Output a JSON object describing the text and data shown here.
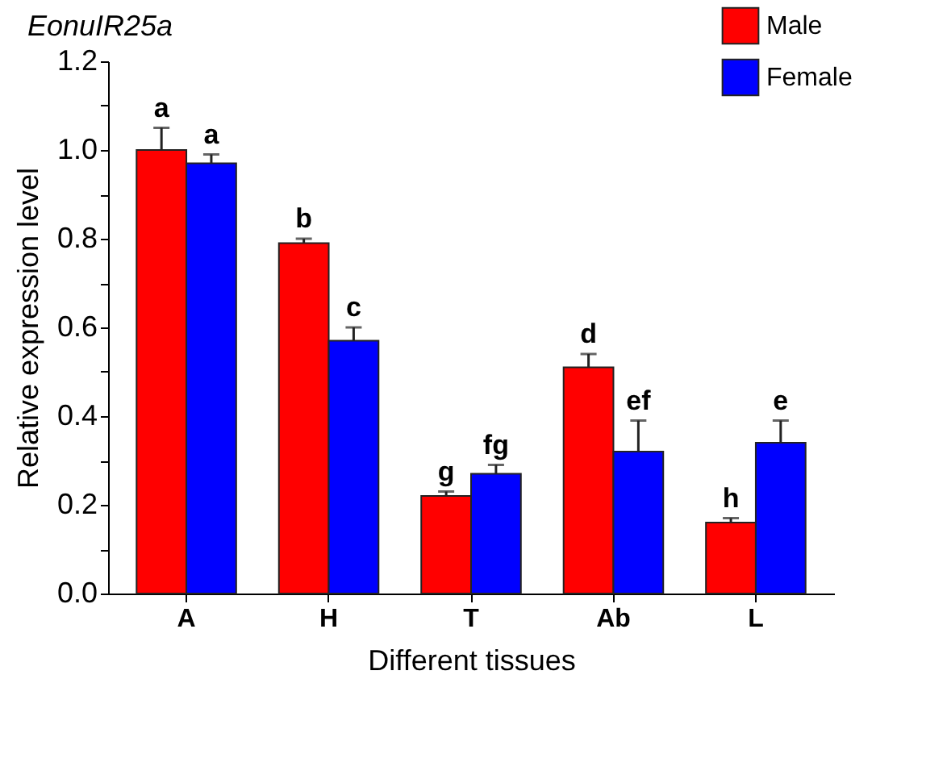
{
  "chart_data": {
    "type": "bar",
    "title": "EonuIR25a",
    "xlabel": "Different tissues",
    "ylabel": "Relative expression level",
    "categories": [
      "A",
      "H",
      "T",
      "Ab",
      "L"
    ],
    "series": [
      {
        "name": "Male",
        "color": "#ff0000",
        "values": [
          1.0,
          0.79,
          0.22,
          0.51,
          0.16
        ],
        "errors": [
          [
            1.0,
            1.05
          ],
          [
            0.79,
            0.8
          ],
          [
            0.22,
            0.23
          ],
          [
            0.51,
            0.54
          ],
          [
            0.16,
            0.17
          ]
        ],
        "value_labels": [
          "a",
          "b",
          "g",
          "d",
          "h"
        ]
      },
      {
        "name": "Female",
        "color": "#0000ff",
        "values": [
          0.97,
          0.57,
          0.27,
          0.32,
          0.34
        ],
        "errors": [
          [
            0.97,
            0.99
          ],
          [
            0.57,
            0.6
          ],
          [
            0.27,
            0.29
          ],
          [
            0.32,
            0.39
          ],
          [
            0.34,
            0.39
          ]
        ],
        "value_labels": [
          "a",
          "c",
          "fg",
          "ef",
          "e"
        ]
      }
    ],
    "ylim": [
      0,
      1.2
    ],
    "yticks": [
      {
        "value": 0,
        "label": "0.0"
      },
      {
        "value": 0.1,
        "label": null
      },
      {
        "value": 0.2,
        "label": "0.2"
      },
      {
        "value": 0.3,
        "label": null
      },
      {
        "value": 0.4,
        "label": "0.4"
      },
      {
        "value": 0.5,
        "label": null
      },
      {
        "value": 0.6,
        "label": "0.6"
      },
      {
        "value": 0.7,
        "label": null
      },
      {
        "value": 0.8,
        "label": "0.8"
      },
      {
        "value": 0.9,
        "label": null
      },
      {
        "value": 1.0,
        "label": "1.0"
      },
      {
        "value": 1.1,
        "label": null
      },
      {
        "value": 1.2,
        "label": "1.2"
      }
    ],
    "grid": false,
    "legend": "top right"
  }
}
